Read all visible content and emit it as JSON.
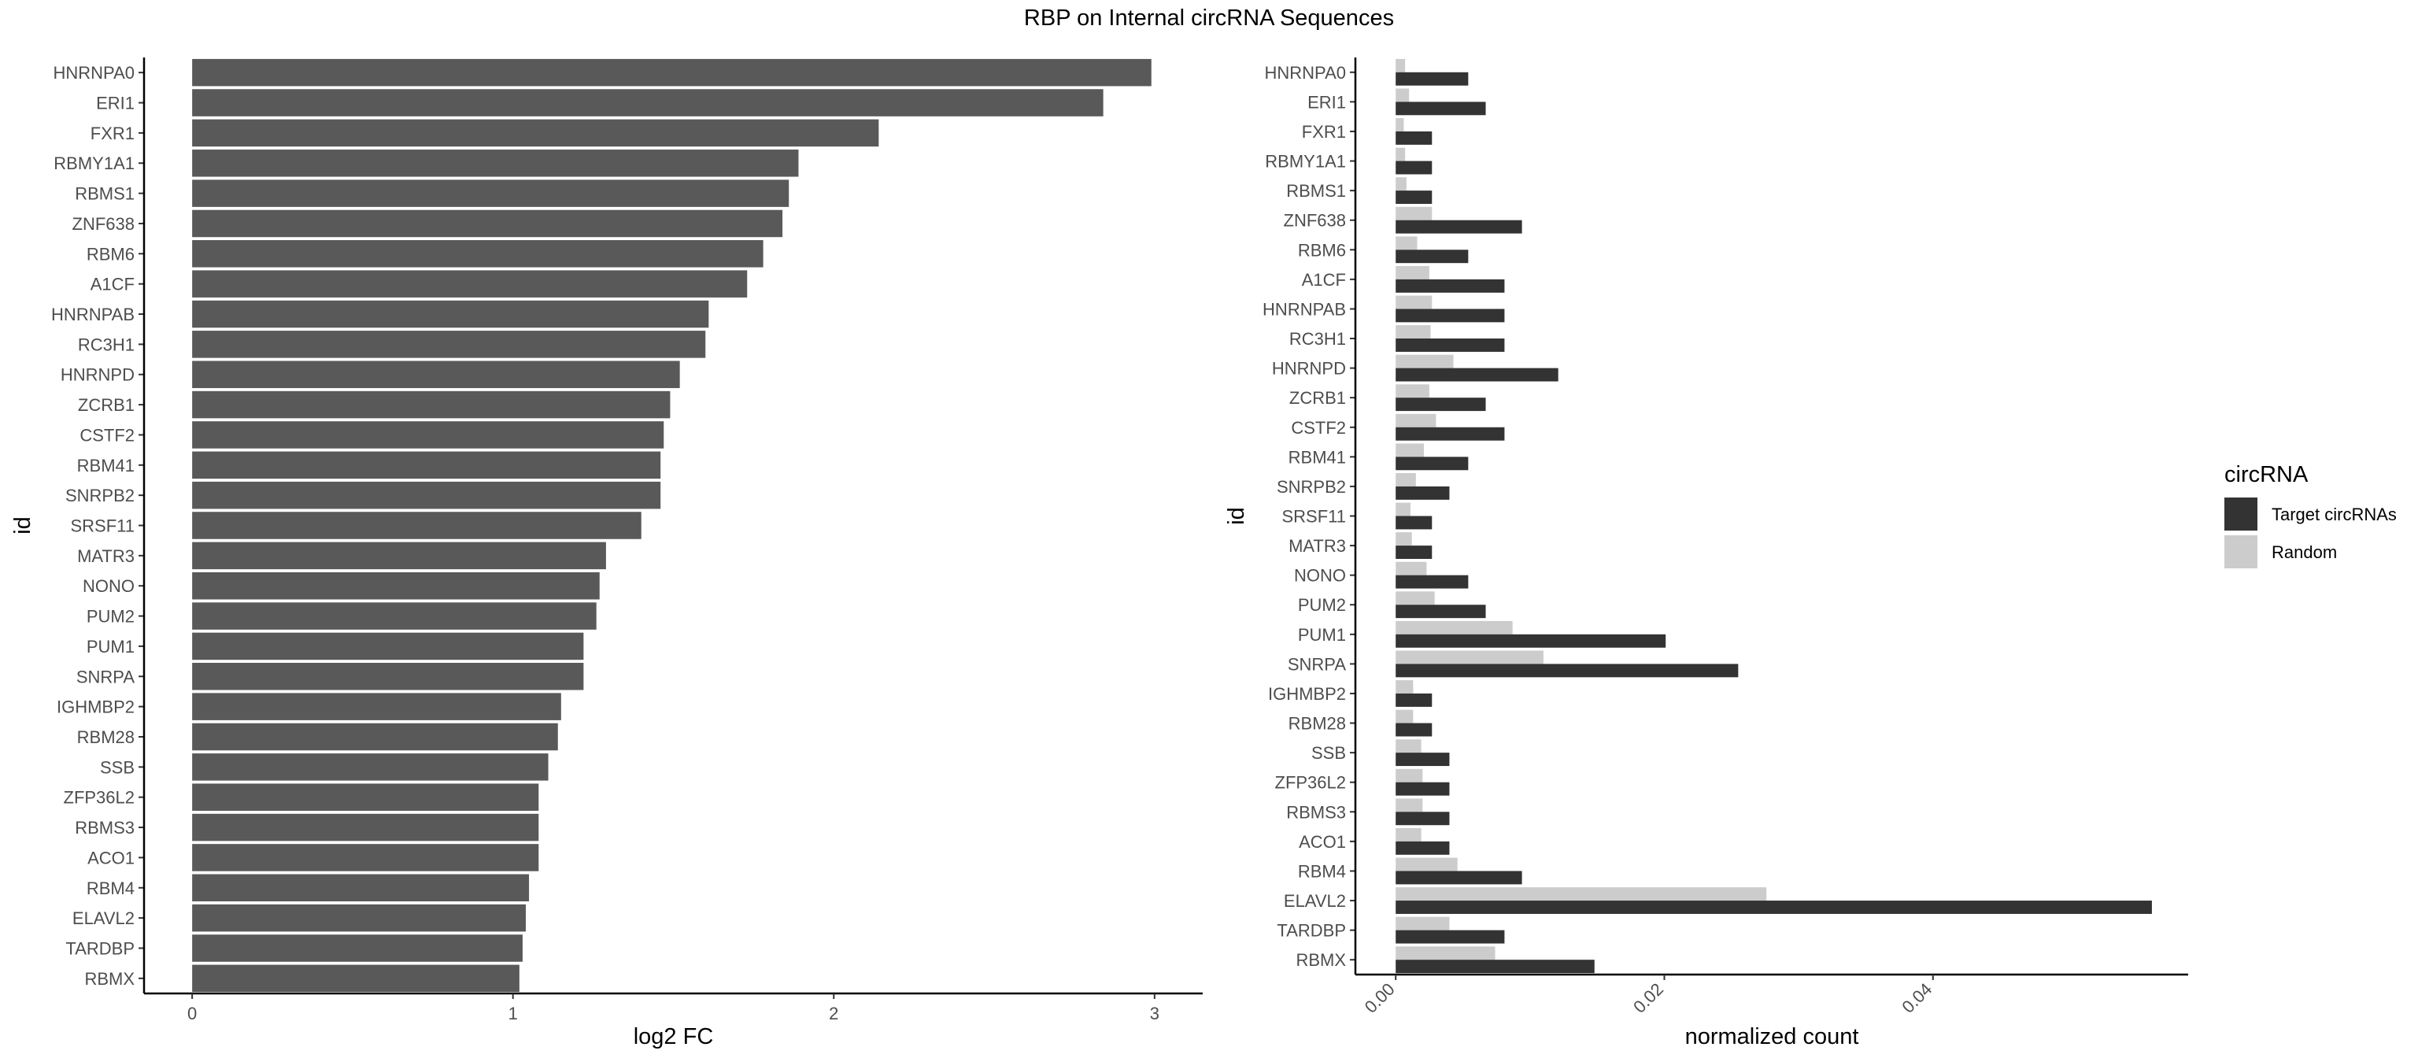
{
  "title": "RBP on Internal circRNA Sequences",
  "chart_data": [
    {
      "type": "bar",
      "orientation": "horizontal",
      "xlabel": "log2 FC",
      "ylabel": "id",
      "xlim": [
        -0.15,
        3.15
      ],
      "xticks": [
        "0",
        "1",
        "2",
        "3"
      ],
      "xtick_values": [
        0,
        1,
        2,
        3
      ],
      "grid": false,
      "bar_color": "#595959",
      "categories": [
        "HNRNPA0",
        "ERI1",
        "FXR1",
        "RBMY1A1",
        "RBMS1",
        "ZNF638",
        "RBM6",
        "A1CF",
        "HNRNPAB",
        "RC3H1",
        "HNRNPD",
        "ZCRB1",
        "CSTF2",
        "RBM41",
        "SNRPB2",
        "SRSF11",
        "MATR3",
        "NONO",
        "PUM2",
        "PUM1",
        "SNRPA",
        "IGHMBP2",
        "RBM28",
        "SSB",
        "ZFP36L2",
        "RBMS3",
        "ACO1",
        "RBM4",
        "ELAVL2",
        "TARDBP",
        "RBMX"
      ],
      "values": [
        2.99,
        2.84,
        2.14,
        1.89,
        1.86,
        1.84,
        1.78,
        1.73,
        1.61,
        1.6,
        1.52,
        1.49,
        1.47,
        1.46,
        1.46,
        1.4,
        1.29,
        1.27,
        1.26,
        1.22,
        1.22,
        1.15,
        1.14,
        1.11,
        1.08,
        1.08,
        1.08,
        1.05,
        1.04,
        1.03,
        1.02
      ]
    },
    {
      "type": "bar",
      "orientation": "horizontal",
      "grouped": true,
      "xlabel": "normalized count",
      "ylabel": "id",
      "xlim": [
        -0.003,
        0.059
      ],
      "xticks": [
        "0.00",
        "0.02",
        "0.04"
      ],
      "xtick_values": [
        0,
        0.02,
        0.04
      ],
      "xtick_rotation": "45°",
      "grid": false,
      "legend_title": "circRNA",
      "legend_position": "right",
      "categories": [
        "HNRNPA0",
        "ERI1",
        "FXR1",
        "RBMY1A1",
        "RBMS1",
        "ZNF638",
        "RBM6",
        "A1CF",
        "HNRNPAB",
        "RC3H1",
        "HNRNPD",
        "ZCRB1",
        "CSTF2",
        "RBM41",
        "SNRPB2",
        "SRSF11",
        "MATR3",
        "NONO",
        "PUM2",
        "PUM1",
        "SNRPA",
        "IGHMBP2",
        "RBM28",
        "SSB",
        "ZFP36L2",
        "RBMS3",
        "ACO1",
        "RBM4",
        "ELAVL2",
        "TARDBP",
        "RBMX"
      ],
      "series": [
        {
          "name": "Target circRNAs",
          "color": "#333333",
          "values": [
            0.0054,
            0.0067,
            0.0027,
            0.0027,
            0.0027,
            0.0094,
            0.0054,
            0.0081,
            0.0081,
            0.0081,
            0.0121,
            0.0067,
            0.0081,
            0.0054,
            0.004,
            0.0027,
            0.0027,
            0.0054,
            0.0067,
            0.0201,
            0.0255,
            0.0027,
            0.0027,
            0.004,
            0.004,
            0.004,
            0.004,
            0.0094,
            0.0563,
            0.0081,
            0.0148
          ]
        },
        {
          "name": "Random",
          "color": "#cccccc",
          "values": [
            0.0007,
            0.001,
            0.0006,
            0.0007,
            0.0008,
            0.0027,
            0.0016,
            0.0025,
            0.0027,
            0.0026,
            0.0043,
            0.0025,
            0.003,
            0.0021,
            0.0015,
            0.0011,
            0.0012,
            0.0023,
            0.0029,
            0.0087,
            0.011,
            0.0013,
            0.0013,
            0.0019,
            0.002,
            0.002,
            0.0019,
            0.0046,
            0.0276,
            0.004,
            0.0074
          ]
        }
      ]
    }
  ]
}
